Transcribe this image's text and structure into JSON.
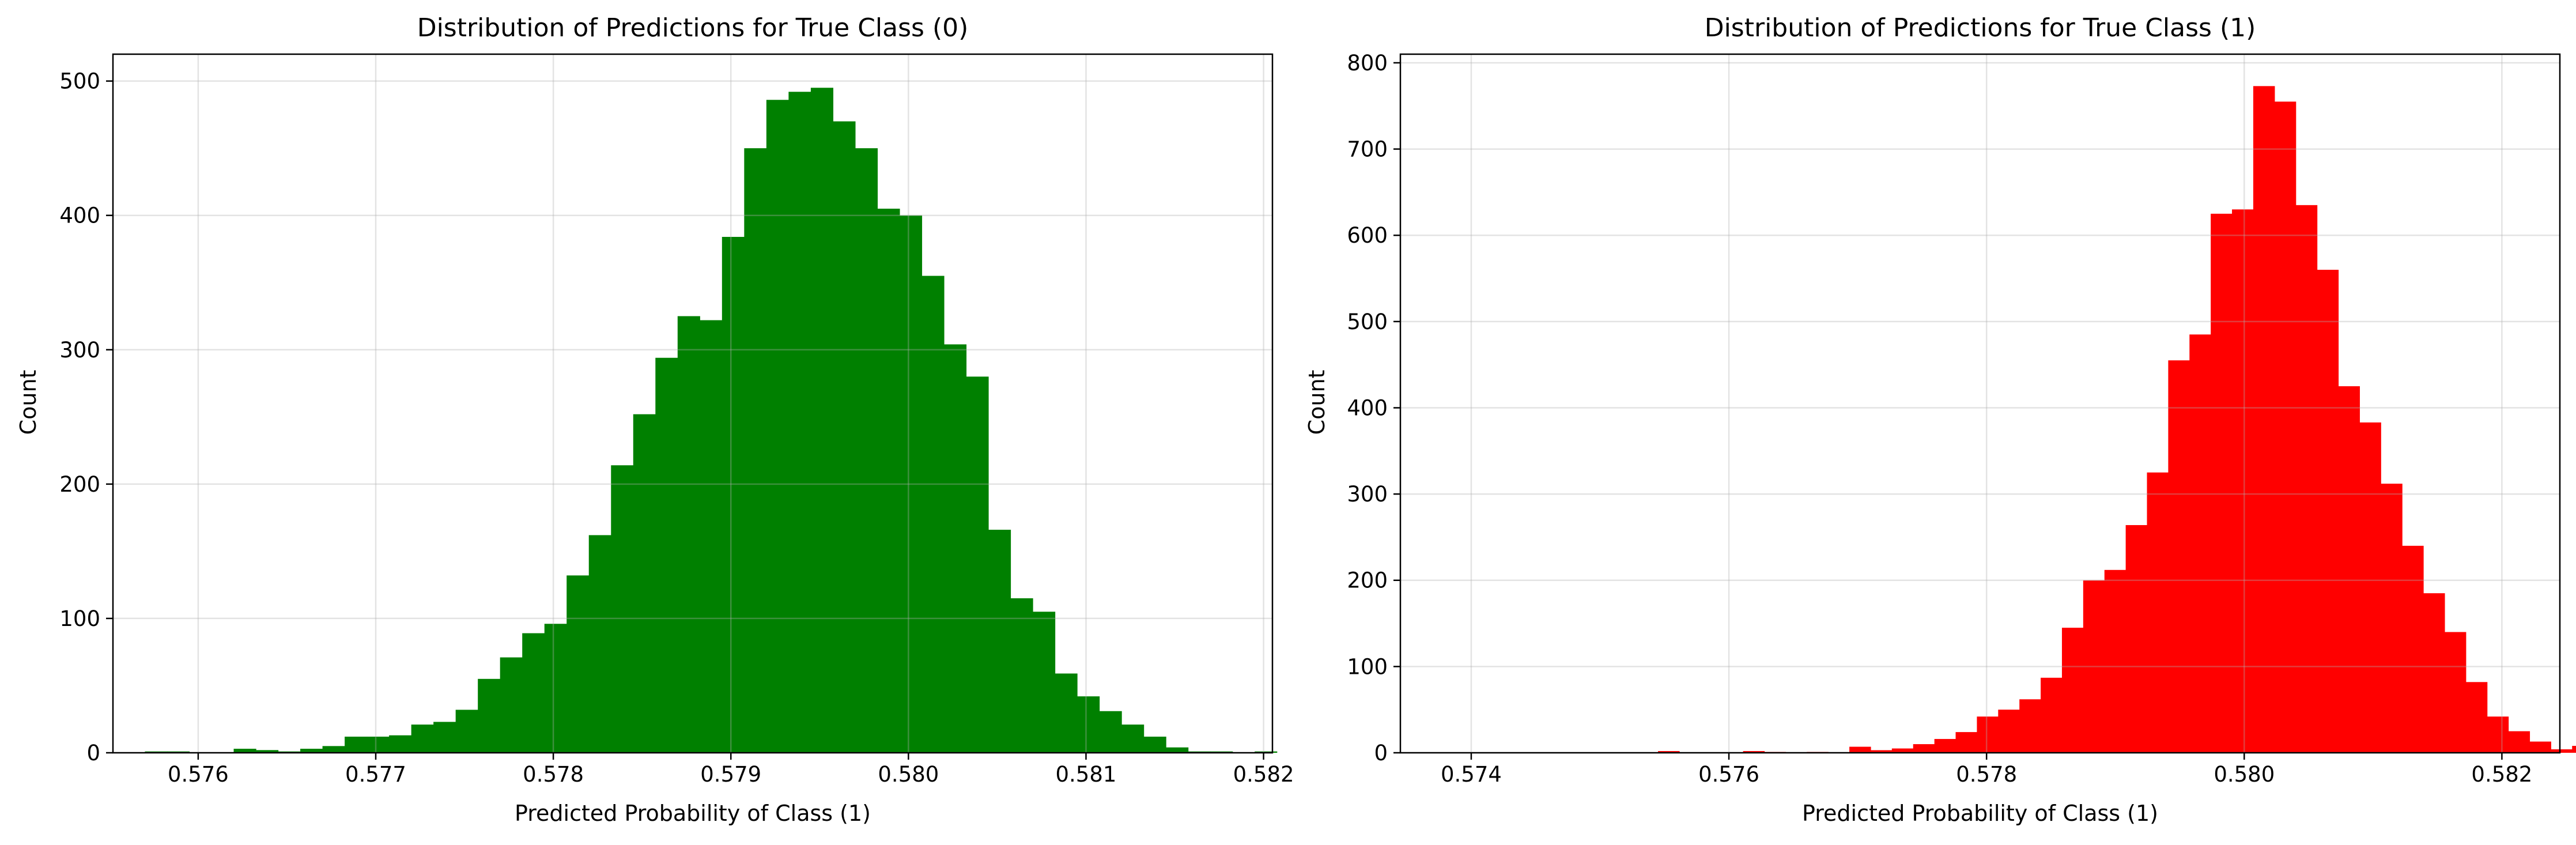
{
  "chart_data": [
    {
      "type": "bar",
      "title": "Distribution of Predictions for True Class (0)",
      "xlabel": "Predicted Probability of Class (1)",
      "ylabel": "Count",
      "xlim": [
        0.57552,
        0.58205
      ],
      "ylim": [
        0,
        520
      ],
      "xticks": [
        "0.576",
        "0.577",
        "0.578",
        "0.579",
        "0.580",
        "0.581",
        "0.582"
      ],
      "yticks": [
        "0",
        "100",
        "200",
        "300",
        "400",
        "500"
      ],
      "grid": true,
      "legend": "none",
      "color": "#008000",
      "bin_start": 0.5757,
      "bin_width": 0.000125,
      "counts": [
        1,
        1,
        0,
        0,
        3,
        2,
        1,
        3,
        5,
        12,
        12,
        13,
        21,
        23,
        32,
        55,
        71,
        89,
        96,
        132,
        162,
        214,
        252,
        294,
        325,
        322,
        384,
        450,
        486,
        492,
        495,
        470,
        450,
        405,
        400,
        355,
        304,
        280,
        166,
        115,
        105,
        59,
        42,
        31,
        21,
        12,
        4,
        1,
        1,
        0,
        1,
        0
      ]
    },
    {
      "type": "bar",
      "title": "Distribution of Predictions for True Class (1)",
      "xlabel": "Predicted Probability of Class (1)",
      "ylabel": "Count",
      "xlim": [
        0.57345,
        0.58245
      ],
      "ylim": [
        0,
        810
      ],
      "xticks": [
        "0.574",
        "0.576",
        "0.578",
        "0.580",
        "0.582"
      ],
      "yticks": [
        "0",
        "100",
        "200",
        "300",
        "400",
        "500",
        "600",
        "700",
        "800"
      ],
      "grid": true,
      "legend": "none",
      "color": "#ff0000",
      "bin_start": 0.57545,
      "bin_width": 0.000165,
      "counts": [
        2,
        0,
        0,
        0,
        2,
        1,
        0,
        1,
        0,
        7,
        3,
        5,
        10,
        16,
        24,
        42,
        50,
        62,
        87,
        145,
        200,
        212,
        264,
        325,
        455,
        485,
        625,
        630,
        773,
        755,
        635,
        560,
        425,
        383,
        312,
        240,
        185,
        140,
        82,
        42,
        25,
        13,
        4,
        8,
        3,
        0
      ]
    }
  ]
}
